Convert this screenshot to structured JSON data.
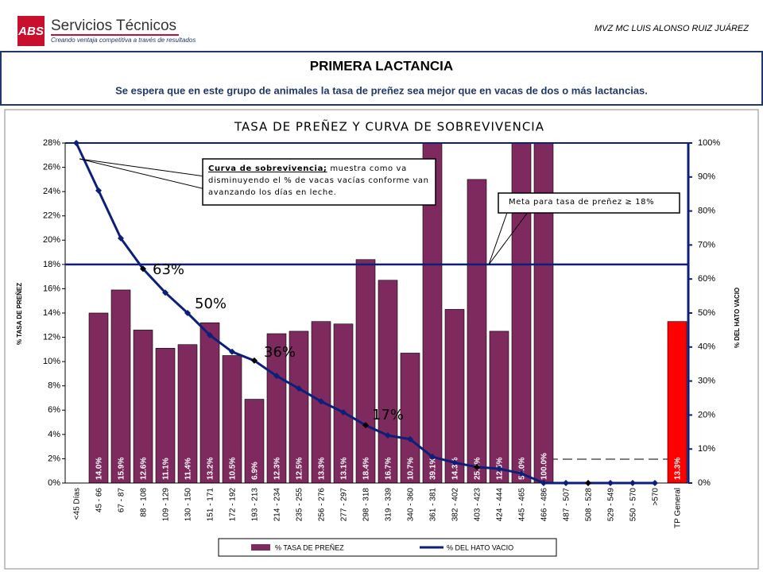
{
  "header": {
    "logo": "ABS",
    "brand": "Servicios Técnicos",
    "tagline": "Creando ventaja competitiva a través de resultados",
    "author": "MVZ MC LUIS ALONSO RUIZ JUÁREZ"
  },
  "banner": {
    "title": "PRIMERA LACTANCIA",
    "subtitle": "Se espera que en este grupo de animales la tasa de preñez sea mejor que en vacas de dos o más lactancias."
  },
  "chart_data": {
    "type": "bar_line",
    "title": "TASA DE PREÑEZ Y CURVA DE SOBREVIVENCIA",
    "ylabel": "% TASA DE PREÑEZ",
    "y2label": "% DEL HATO VACIO",
    "categories": [
      "<45 Días",
      "45 - 66",
      "67 - 87",
      "88 - 108",
      "109 - 129",
      "130 - 150",
      "151 - 171",
      "172 - 192",
      "193 - 213",
      "214 - 234",
      "235 - 255",
      "256 - 276",
      "277 - 297",
      "298 - 318",
      "319 - 339",
      "340 - 360",
      "361 - 381",
      "382 - 402",
      "403 - 423",
      "424 - 444",
      "445 - 465",
      "466 - 486",
      "487 - 507",
      "508 - 528",
      "529 - 549",
      "550 - 570",
      ">570",
      "TP General"
    ],
    "series": [
      {
        "name": "% TASA DE PREÑEZ",
        "color": "#7f2a5e",
        "axis": "y",
        "colors": [
          "#7f2a5e",
          "#7f2a5e",
          "#7f2a5e",
          "#7f2a5e",
          "#7f2a5e",
          "#7f2a5e",
          "#7f2a5e",
          "#7f2a5e",
          "#7f2a5e",
          "#7f2a5e",
          "#7f2a5e",
          "#7f2a5e",
          "#7f2a5e",
          "#7f2a5e",
          "#7f2a5e",
          "#7f2a5e",
          "#7f2a5e",
          "#7f2a5e",
          "#7f2a5e",
          "#7f2a5e",
          "#7f2a5e",
          "#7f2a5e",
          "#7f2a5e",
          "#7f2a5e",
          "#7f2a5e",
          "#7f2a5e",
          "#7f2a5e",
          "#ff0000"
        ],
        "values": [
          null,
          14.0,
          15.9,
          12.6,
          11.1,
          11.4,
          13.2,
          10.5,
          6.9,
          12.3,
          12.5,
          13.3,
          13.1,
          18.4,
          16.7,
          10.7,
          39.1,
          14.3,
          25.0,
          12.5,
          50.0,
          100.0,
          null,
          null,
          null,
          null,
          null,
          13.3
        ],
        "value_labels": [
          null,
          "14.0%",
          "15.9%",
          "12.6%",
          "11.1%",
          "11.4%",
          "13.2%",
          "10.5%",
          "6.9%",
          "12.3%",
          "12.5%",
          "13.3%",
          "13.1%",
          "18.4%",
          "16.7%",
          "10.7%",
          "39.1%",
          "14.3%",
          "25.0%",
          "12.5%",
          "50.0%",
          "100.0%",
          null,
          null,
          null,
          null,
          null,
          "13.3%"
        ]
      },
      {
        "name": "% DEL HATO VACIO",
        "color": "#0c1f7a",
        "axis": "y2",
        "values": [
          100,
          86,
          72,
          63,
          56,
          50,
          43.5,
          38.6,
          36,
          31.5,
          27.8,
          24,
          20.8,
          17,
          14,
          12.9,
          7.7,
          6,
          4.7,
          4.2,
          2.8,
          0,
          0,
          0,
          0,
          0,
          0,
          null
        ]
      }
    ],
    "target": 18,
    "target_color": "#0c1f7a",
    "ylim": [
      0,
      28
    ],
    "yticks": [
      {
        "value": 0,
        "label": "0%"
      },
      {
        "value": 2,
        "label": "2%"
      },
      {
        "value": 4,
        "label": "4%"
      },
      {
        "value": 6,
        "label": "6%"
      },
      {
        "value": 8,
        "label": "8%"
      },
      {
        "value": 10,
        "label": "10%"
      },
      {
        "value": 12,
        "label": "12%"
      },
      {
        "value": 14,
        "label": "14%"
      },
      {
        "value": 16,
        "label": "16%"
      },
      {
        "value": 18,
        "label": "18%"
      },
      {
        "value": 20,
        "label": "20%"
      },
      {
        "value": 22,
        "label": "22%"
      },
      {
        "value": 24,
        "label": "24%"
      },
      {
        "value": 26,
        "label": "26%"
      },
      {
        "value": 28,
        "label": "28%"
      }
    ],
    "y2lim": [
      0,
      100
    ],
    "y2ticks": [
      {
        "value": 0,
        "label": "0%"
      },
      {
        "value": 10,
        "label": "10%"
      },
      {
        "value": 20,
        "label": "20%"
      },
      {
        "value": 30,
        "label": "30%"
      },
      {
        "value": 40,
        "label": "40%"
      },
      {
        "value": 50,
        "label": "50%"
      },
      {
        "value": 60,
        "label": "60%"
      },
      {
        "value": 70,
        "label": "70%"
      },
      {
        "value": 80,
        "label": "80%"
      },
      {
        "value": 90,
        "label": "90%"
      },
      {
        "value": 100,
        "label": "100%"
      }
    ],
    "annotations": [
      "63%",
      "50%",
      "36%",
      "17%"
    ],
    "callout_heading": "Curva de sobrevivencia;",
    "callout_body": "muestra como va disminuyendo el % de vacas vacías conforme van avanzando los días en leche.",
    "target_callout": "Meta para tasa de preñez ≥ 18%",
    "legend": "bottom"
  }
}
